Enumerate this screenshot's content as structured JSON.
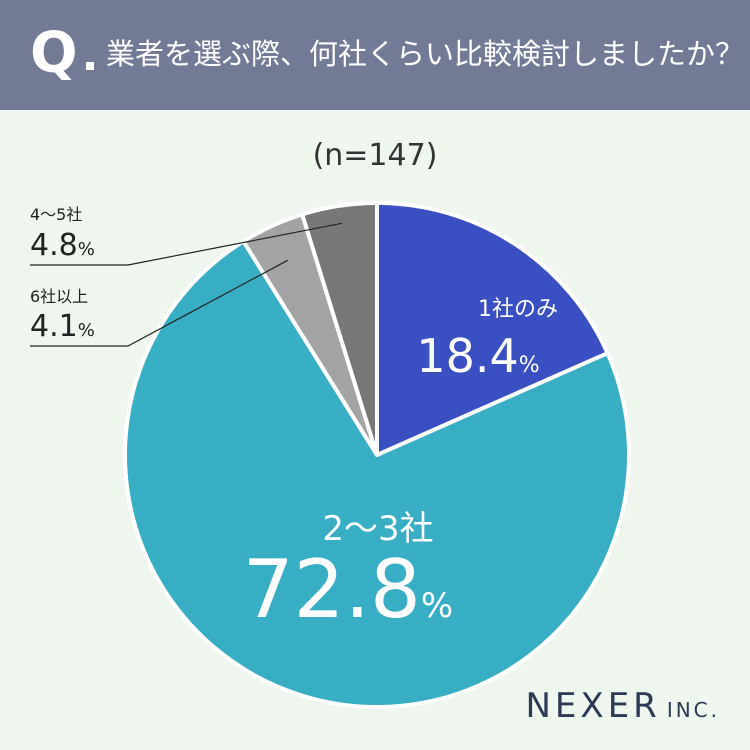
{
  "question": {
    "mark": "Q",
    "text": "業者を選ぶ際、何社くらい比較検討しましたか？"
  },
  "sample_size": "(n=147)",
  "brand": {
    "name": "NEXER",
    "suffix": "INC."
  },
  "chart_data": {
    "type": "pie",
    "title": "業者を選ぶ際、何社くらい比較検討しましたか？",
    "unit": "%",
    "start_angle_deg": 0,
    "direction": "clockwise",
    "slices": [
      {
        "label": "1社のみ",
        "value": 18.4,
        "display": "18.4",
        "color": "#3a4fc2",
        "label_position": "inside",
        "text_color": "#ffffff"
      },
      {
        "label": "2〜3社",
        "value": 72.8,
        "display": "72.8",
        "color": "#38aec4",
        "label_position": "inside",
        "text_color": "#ffffff"
      },
      {
        "label": "6社以上",
        "value": 4.1,
        "display": "4.1",
        "color": "#a3a3a3",
        "label_position": "outside",
        "text_color": "#222222"
      },
      {
        "label": "4〜5社",
        "value": 4.8,
        "display": "4.8",
        "color": "#777777",
        "label_position": "outside",
        "text_color": "#222222"
      }
    ]
  }
}
